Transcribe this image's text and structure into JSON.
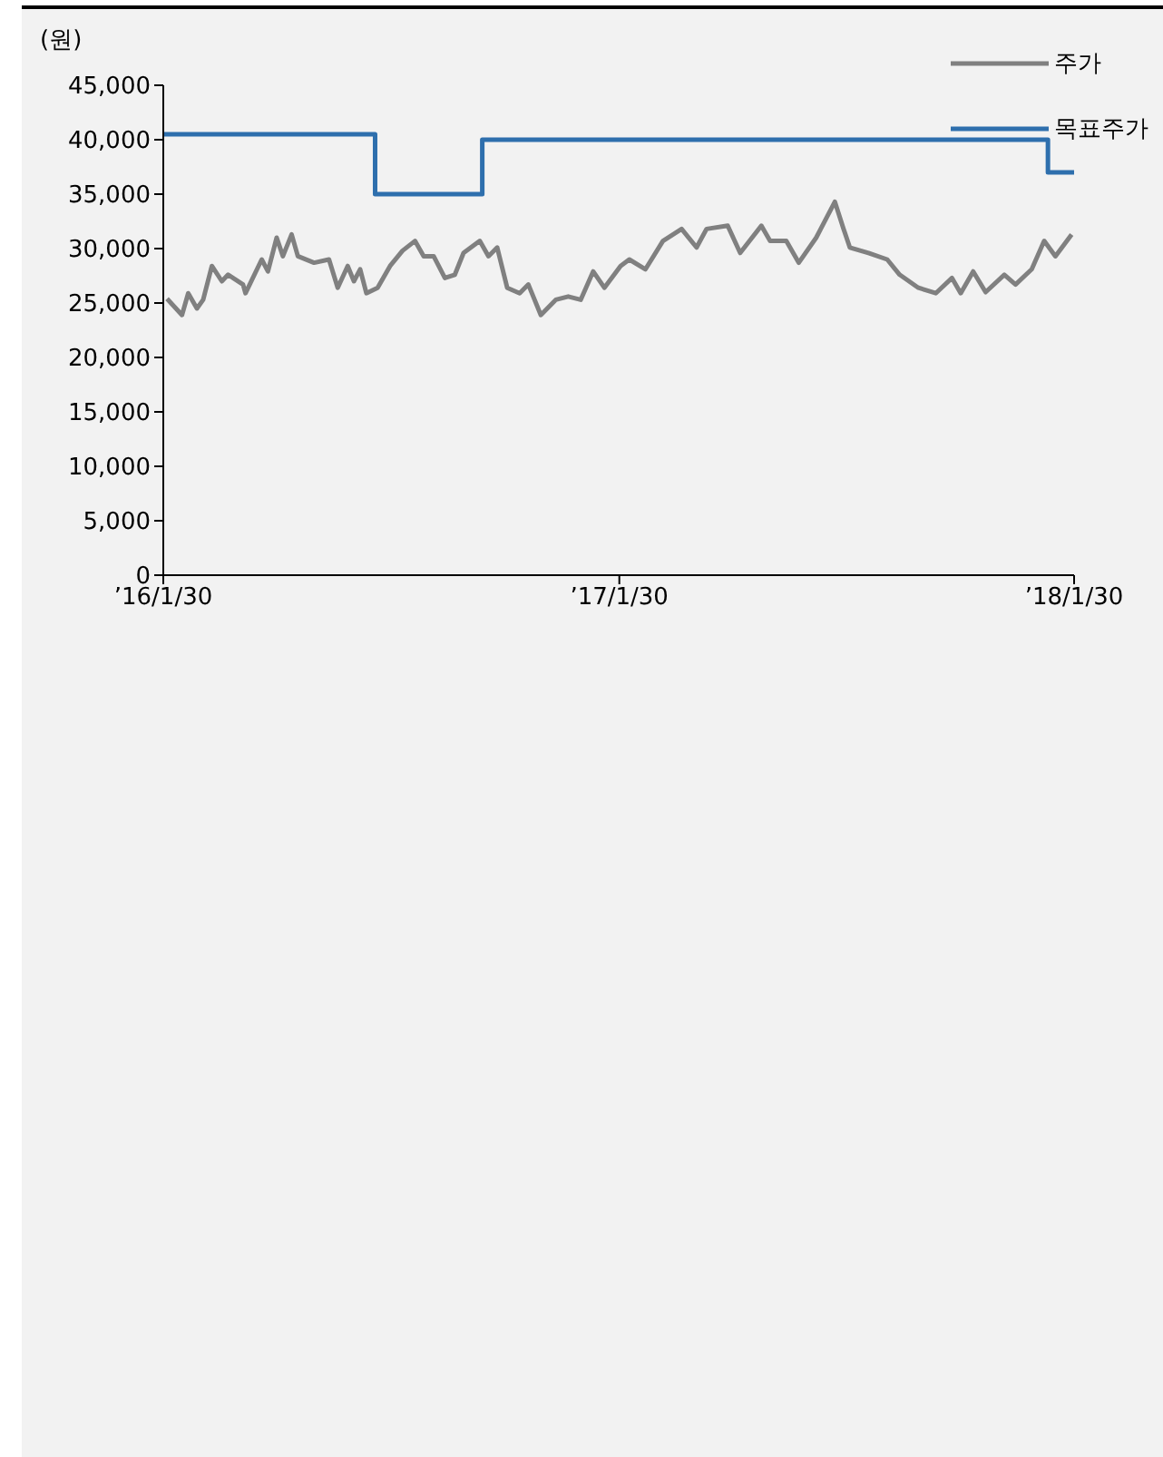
{
  "chart_data": {
    "type": "line",
    "ylabel": "(원)",
    "legend": "top right",
    "grid": false,
    "marker": "none",
    "line_style": "solid",
    "xlim": [
      "2016-01-30",
      "2018-01-30"
    ],
    "xticks": [
      {
        "value": "2016-01-30",
        "label": "’16/1/30"
      },
      {
        "value": "2017-01-30",
        "label": "’17/1/30"
      },
      {
        "value": "2018-01-30",
        "label": "’18/1/30"
      }
    ],
    "ylim": [
      0,
      45000
    ],
    "yticks": [
      0,
      {
        "value": 5000,
        "label": "5,000"
      },
      {
        "value": 10000,
        "label": "10,000"
      },
      {
        "value": 15000,
        "label": "15,000"
      },
      {
        "value": 20000,
        "label": "20,000"
      },
      {
        "value": 25000,
        "label": "25,000"
      },
      {
        "value": 30000,
        "label": "30,000"
      },
      {
        "value": 35000,
        "label": "35,000"
      },
      {
        "value": 40000,
        "label": "40,000"
      },
      {
        "value": 45000,
        "label": "45,000"
      }
    ],
    "series": [
      {
        "name": "주가",
        "color": "#808080",
        "x": [
          "2016-02-02",
          "2016-02-14",
          "2016-02-19",
          "2016-02-26",
          "2016-03-02",
          "2016-03-09",
          "2016-03-17",
          "2016-03-22",
          "2016-04-03",
          "2016-04-05",
          "2016-04-18",
          "2016-04-23",
          "2016-04-30",
          "2016-05-05",
          "2016-05-12",
          "2016-05-17",
          "2016-05-30",
          "2016-06-11",
          "2016-06-18",
          "2016-06-26",
          "2016-07-01",
          "2016-07-06",
          "2016-07-11",
          "2016-07-20",
          "2016-07-30",
          "2016-08-09",
          "2016-08-19",
          "2016-08-26",
          "2016-09-03",
          "2016-09-12",
          "2016-09-20",
          "2016-09-27",
          "2016-10-10",
          "2016-10-17",
          "2016-10-24",
          "2016-11-01",
          "2016-11-11",
          "2016-11-18",
          "2016-11-28",
          "2016-12-10",
          "2016-12-20",
          "2016-12-30",
          "2017-01-09",
          "2017-01-18",
          "2017-01-31",
          "2017-02-07",
          "2017-02-20",
          "2017-03-06",
          "2017-03-21",
          "2017-04-02",
          "2017-04-10",
          "2017-04-27",
          "2017-05-07",
          "2017-05-24",
          "2017-05-31",
          "2017-06-13",
          "2017-06-23",
          "2017-07-07",
          "2017-07-22",
          "2017-07-29",
          "2017-08-03",
          "2017-08-18",
          "2017-09-02",
          "2017-09-12",
          "2017-09-27",
          "2017-10-11",
          "2017-10-24",
          "2017-10-31",
          "2017-11-10",
          "2017-11-20",
          "2017-12-05",
          "2017-12-14",
          "2017-12-27",
          "2018-01-06",
          "2018-01-15",
          "2018-01-28"
        ],
        "values": [
          25400,
          23900,
          25900,
          24500,
          25300,
          28400,
          27000,
          27600,
          26700,
          25900,
          29000,
          27900,
          31000,
          29300,
          31300,
          29300,
          28700,
          29000,
          26400,
          28400,
          27000,
          28100,
          25900,
          26400,
          28400,
          29800,
          30700,
          29300,
          29300,
          27300,
          27600,
          29600,
          30700,
          29300,
          30100,
          26400,
          25900,
          26700,
          23900,
          25300,
          25600,
          25300,
          27900,
          26400,
          28400,
          29000,
          28100,
          30700,
          31800,
          30100,
          31800,
          32100,
          29600,
          32100,
          30700,
          30700,
          28700,
          31000,
          34300,
          31800,
          30100,
          29600,
          29000,
          27600,
          26400,
          25900,
          27300,
          25900,
          27900,
          26000,
          27600,
          26700,
          28100,
          30700,
          29300,
          31300
        ]
      },
      {
        "name": "목표주가",
        "type": "step",
        "color": "#2e6fad",
        "x": [
          "2016-01-30",
          "2016-07-18",
          "2016-10-12",
          "2018-01-09",
          "2018-01-30"
        ],
        "values": [
          40500,
          35000,
          40000,
          37000,
          37000
        ]
      }
    ]
  }
}
